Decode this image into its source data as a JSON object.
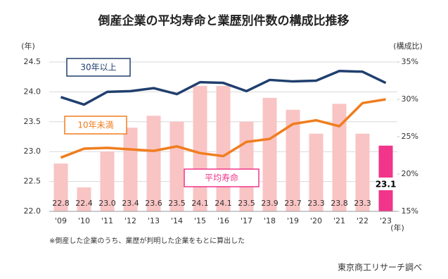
{
  "chart_data": {
    "type": "bar",
    "title": "倒産企業の平均寿命と業歴別件数の構成比推移",
    "y_label": "(年)",
    "y2_label": "(構成比)",
    "x_unit": "(年)",
    "categories": [
      "'09",
      "'10",
      "'11",
      "'12",
      "'13",
      "'14",
      "'15",
      "'16",
      "'17",
      "'18",
      "'19",
      "'20",
      "'21",
      "'22",
      "'23"
    ],
    "bars": {
      "name": "平均寿命",
      "values": [
        22.8,
        22.4,
        23.0,
        23.4,
        23.6,
        23.5,
        24.1,
        24.1,
        23.5,
        23.9,
        23.7,
        23.3,
        23.8,
        23.3,
        23.1
      ],
      "value_labels": [
        "22.8",
        "22.4",
        "23.0",
        "23.4",
        "23.6",
        "23.5",
        "24.1",
        "24.1",
        "23.5",
        "23.9",
        "23.7",
        "23.3",
        "23.8",
        "23.3",
        "23.1"
      ],
      "color": "#f9c4c4",
      "highlight_color": "#f0358a"
    },
    "series": [
      {
        "name": "30年以上",
        "type": "line",
        "axis": "y2",
        "color": "#203f6e",
        "values": [
          30.3,
          29.3,
          31.0,
          31.1,
          31.5,
          30.7,
          32.3,
          32.2,
          31.1,
          32.6,
          32.4,
          32.5,
          33.8,
          33.7,
          32.2
        ]
      },
      {
        "name": "10年未満",
        "type": "line",
        "axis": "y2",
        "color": "#f07d1e",
        "values": [
          22.2,
          23.4,
          23.5,
          23.3,
          23.1,
          23.7,
          22.8,
          22.4,
          24.3,
          24.7,
          26.7,
          27.2,
          26.4,
          29.5,
          30.0
        ]
      }
    ],
    "ylim": [
      22.0,
      24.5
    ],
    "yticks": [
      {
        "value": 22.0,
        "label": "22.0"
      },
      22.5,
      {
        "value": 23.0,
        "label": "23.0"
      },
      23.5,
      {
        "value": 24.0,
        "label": "24.0"
      },
      24.5
    ],
    "y2lim": [
      15,
      35
    ],
    "y2ticks": [
      {
        "value": 15,
        "label": "15%"
      },
      {
        "value": 20,
        "label": "20%"
      },
      {
        "value": 25,
        "label": "25%"
      },
      {
        "value": 30,
        "label": "30%"
      },
      {
        "value": 35,
        "label": "35%"
      }
    ],
    "grid": true,
    "footnote": "※倒産した企業のうち、業歴が判明した企業をもとに算出した",
    "source": "東京商工リサーチ調べ"
  }
}
